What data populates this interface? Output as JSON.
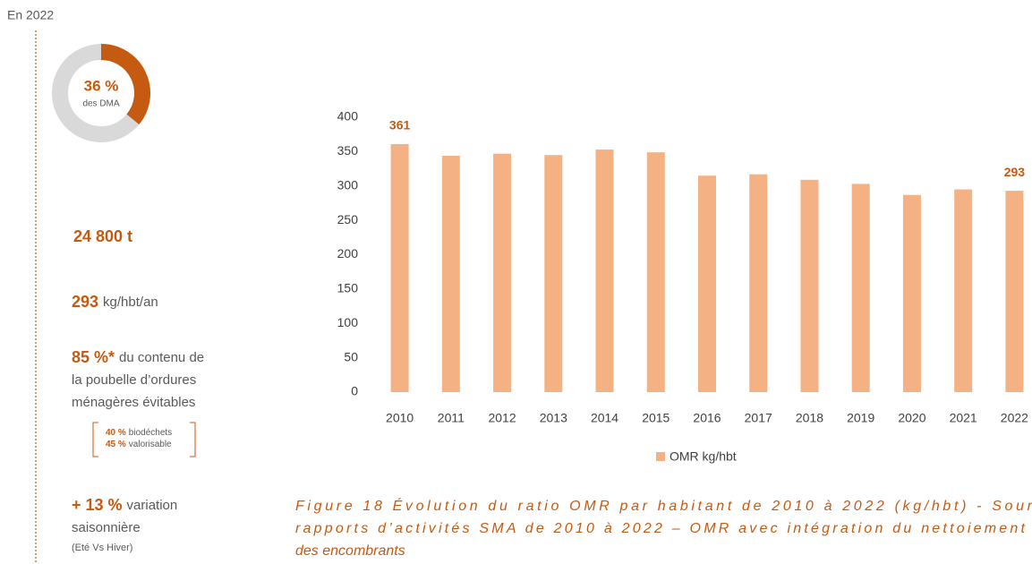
{
  "header": "En 2022",
  "donut": {
    "value": 36,
    "label": "36 %",
    "caption": "des DMA"
  },
  "tonnage": "24 800 t",
  "ratio": {
    "value": "293",
    "unit": "kg/hbt/an"
  },
  "avoidable": {
    "value": "85 %*",
    "lines": [
      "du contenu de",
      "la poubelle d’ordures",
      "ménagères évitables"
    ],
    "details": [
      {
        "value": "40 %",
        "text": "biodéchets"
      },
      {
        "value": "45 %",
        "text": "valorisable"
      }
    ]
  },
  "seasonal": {
    "value": "+ 13 %",
    "lines": [
      "variation",
      "saisonnière"
    ],
    "note": "(Eté Vs Hiver)"
  },
  "chart_data": {
    "type": "bar",
    "categories": [
      "2010",
      "2011",
      "2012",
      "2013",
      "2014",
      "2015",
      "2016",
      "2017",
      "2018",
      "2019",
      "2020",
      "2021",
      "2022"
    ],
    "series": [
      {
        "name": "OMR kg/hbt",
        "color": "#f4b183",
        "values": [
          361,
          344,
          347,
          345,
          353,
          349,
          315,
          317,
          309,
          303,
          287,
          295,
          293
        ],
        "value_labels": [
          "361",
          null,
          null,
          null,
          null,
          null,
          null,
          null,
          null,
          null,
          null,
          null,
          "293"
        ]
      }
    ],
    "ylim": [
      0,
      400
    ],
    "yticks": [
      0,
      50,
      100,
      150,
      200,
      250,
      300,
      350,
      400
    ],
    "grid": false,
    "legend": "bottom"
  },
  "caption": [
    "Figure 18 Évolution du ratio OMR par habitant de 2010 à 2022 (kg/hbt) - Sour",
    "rapports d’activités SMA de 2010 à 2022 – OMR avec intégration du nettoiement",
    "des encombrants"
  ]
}
